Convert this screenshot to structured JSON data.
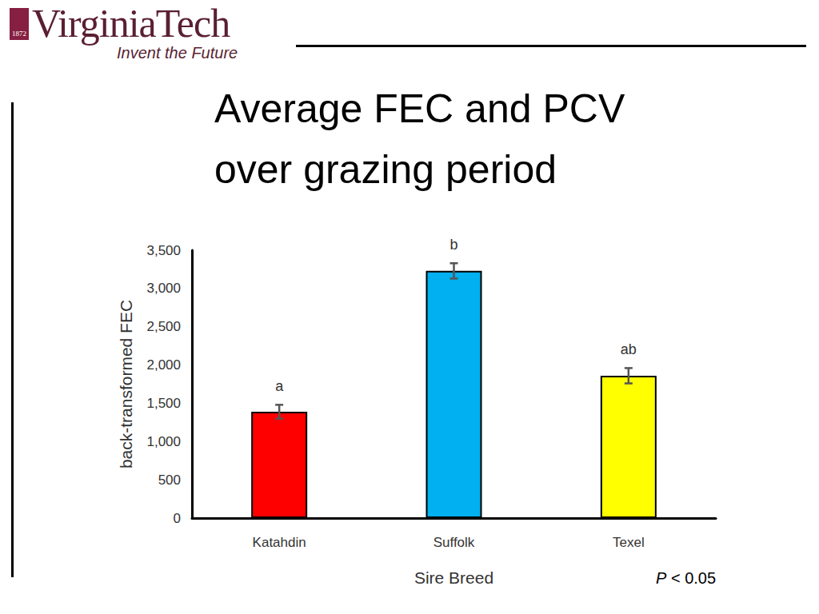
{
  "slide": {
    "logo_year": "1872",
    "brand": "VirginiaTech",
    "tagline": "Invent the Future"
  },
  "chart_data": {
    "type": "bar",
    "title": "Average FEC and PCV over grazing period",
    "categories": [
      "Katahdin",
      "Suffolk",
      "Texel"
    ],
    "values": [
      1390,
      3230,
      1860
    ],
    "errors": [
      90,
      100,
      100
    ],
    "significance_letters": [
      "a",
      "b",
      "ab"
    ],
    "colors": [
      "#ff0000",
      "#00b0f0",
      "#ffff00"
    ],
    "xlabel": "Sire Breed",
    "ylabel": "back-transformed FEC",
    "ylim": [
      0,
      3500
    ],
    "yticks": [
      0,
      500,
      1000,
      1500,
      2000,
      2500,
      3000,
      3500
    ],
    "grid": false,
    "annotation": "P < 0.05"
  }
}
